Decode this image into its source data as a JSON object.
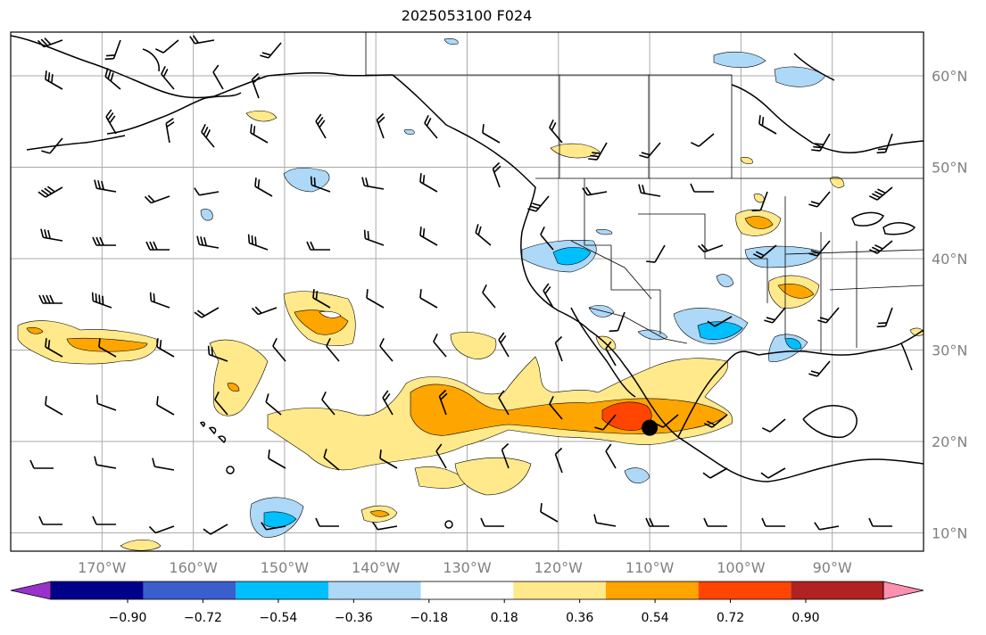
{
  "title": "2025053100 F024",
  "map": {
    "lon_ticks": [
      "170°W",
      "160°W",
      "150°W",
      "140°W",
      "130°W",
      "120°W",
      "110°W",
      "100°W",
      "90°W"
    ],
    "lat_ticks": [
      "60°N",
      "50°N",
      "40°N",
      "30°N",
      "20°N",
      "10°N"
    ],
    "grid": true,
    "marker": {
      "name": "storm-center",
      "lon": -110,
      "lat": 21.5
    }
  },
  "colorbar": {
    "tick_labels": [
      "−0.90",
      "−0.72",
      "−0.54",
      "−0.36",
      "−0.18",
      "0.18",
      "0.36",
      "0.54",
      "0.72",
      "0.90"
    ],
    "colors": [
      "#9932cc",
      "#00008b",
      "#3a5fcd",
      "#00bfff",
      "#add8f7",
      "#ffffff",
      "#ffe98a",
      "#ffa500",
      "#ff4500",
      "#b22222",
      "#ff8fb0"
    ]
  },
  "fill_colors": {
    "light_blue": "#add8f7",
    "blue": "#00bfff",
    "light_yellow": "#ffe98a",
    "orange": "#ffa500",
    "red_orange": "#ff4500"
  }
}
